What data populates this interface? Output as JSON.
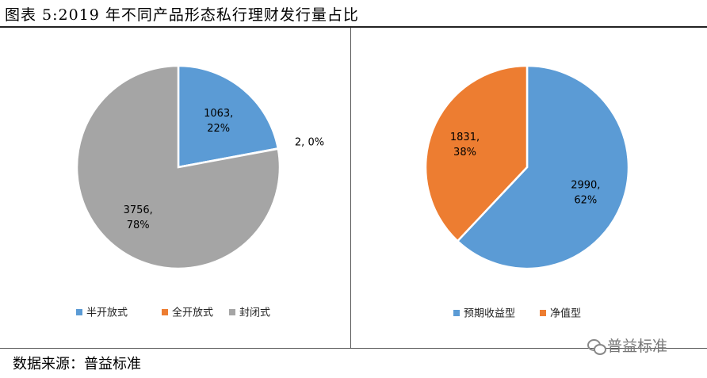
{
  "figure": {
    "title": "图表 5:2019 年不同产品形态私行理财发行量占比",
    "source": "数据来源：普益标准",
    "watermark": "普益标准",
    "watermark_icon": "wechat-icon"
  },
  "chart_data": [
    {
      "type": "pie",
      "categories": [
        "半开放式",
        "全开放式",
        "封闭式"
      ],
      "values": [
        1063,
        2,
        3756
      ],
      "percent_labels": [
        "22%",
        "0%",
        "78%"
      ],
      "data_labels": [
        "1063,",
        "2, 0%",
        "3756,"
      ],
      "colors": [
        "#5B9BD5",
        "#ED7D31",
        "#A5A5A5"
      ],
      "legend_position": "bottom",
      "start_angle_deg": 0,
      "direction": "clockwise"
    },
    {
      "type": "pie",
      "categories": [
        "预期收益型",
        "净值型"
      ],
      "values": [
        2990,
        1831
      ],
      "percent_labels": [
        "62%",
        "38%"
      ],
      "data_labels": [
        "2990,",
        "1831,"
      ],
      "colors": [
        "#5B9BD5",
        "#ED7D31"
      ],
      "legend_position": "bottom",
      "start_angle_deg": 0,
      "direction": "clockwise"
    }
  ]
}
